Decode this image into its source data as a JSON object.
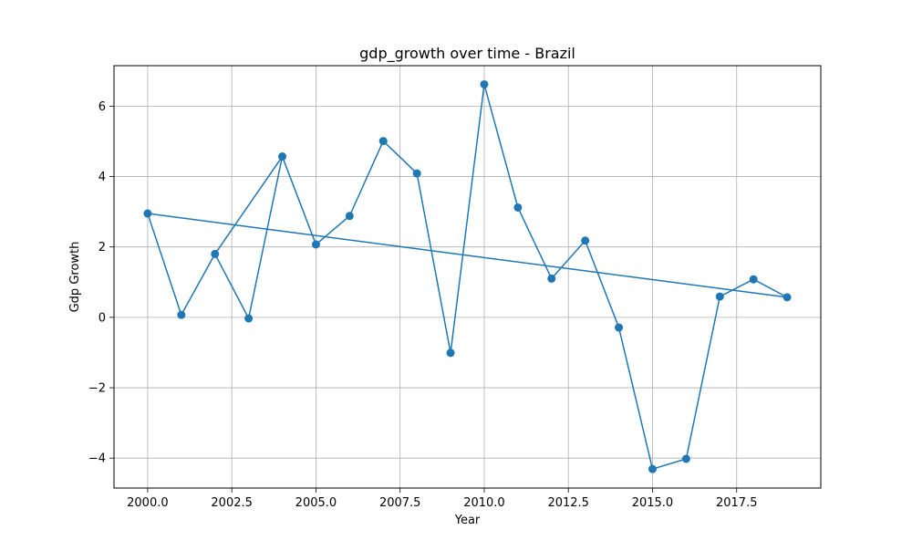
{
  "chart_data": {
    "type": "line",
    "title": "gdp_growth over time - Brazil",
    "xlabel": "Year",
    "ylabel": "Gdp Growth",
    "xlim": [
      1999,
      2020
    ],
    "ylim": [
      -4.85,
      7.15
    ],
    "xticks": [
      2000.0,
      2002.5,
      2005.0,
      2007.5,
      2010.0,
      2012.5,
      2015.0,
      2017.5
    ],
    "xtick_labels": [
      "2000.0",
      "2002.5",
      "2005.0",
      "2007.5",
      "2010.0",
      "2012.5",
      "2015.0",
      "2017.5"
    ],
    "yticks": [
      -4,
      -2,
      0,
      2,
      4,
      6
    ],
    "ytick_labels": [
      "−4",
      "−2",
      "0",
      "2",
      "4",
      "6"
    ],
    "grid": true,
    "legend": "none",
    "color": "#1f77b4",
    "series": [
      {
        "path_order": [
          2000,
          2001,
          2002,
          2003,
          2004,
          2005,
          2006,
          2007,
          2008,
          2009,
          2010,
          2011,
          2012,
          2013,
          2014,
          2015,
          2016,
          2017,
          2018,
          2019,
          2000,
          2001,
          2002,
          2004,
          2005,
          2006,
          2007,
          2008,
          2009,
          2010,
          2011,
          2012,
          2013,
          2014,
          2015,
          2016,
          2017,
          2018,
          2019
        ],
        "x": [
          2000,
          2001,
          2002,
          2003,
          2004,
          2005,
          2006,
          2007,
          2008,
          2009,
          2010,
          2011,
          2012,
          2013,
          2014,
          2015,
          2016,
          2017,
          2018,
          2019
        ],
        "y": [
          2.95,
          0.07,
          1.8,
          -0.03,
          4.57,
          2.07,
          2.88,
          5.01,
          4.09,
          -1.01,
          6.62,
          3.12,
          1.1,
          2.18,
          -0.29,
          -4.31,
          -4.02,
          0.59,
          1.08,
          0.57
        ]
      }
    ]
  }
}
